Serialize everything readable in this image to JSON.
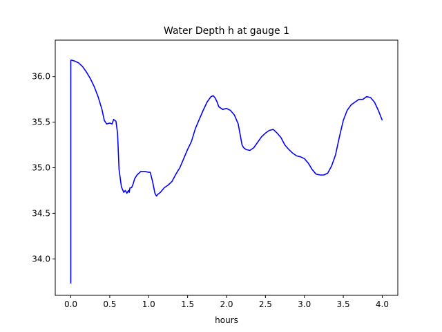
{
  "chart_data": {
    "type": "line",
    "title": "Water Depth h at gauge 1",
    "xlabel": "hours",
    "ylabel": "",
    "xlim": [
      -0.2,
      4.2
    ],
    "ylim": [
      33.6,
      36.4
    ],
    "xticks": [
      0.0,
      0.5,
      1.0,
      1.5,
      2.0,
      2.5,
      3.0,
      3.5,
      4.0
    ],
    "xtick_labels": [
      "0.0",
      "0.5",
      "1.0",
      "1.5",
      "2.0",
      "2.5",
      "3.0",
      "3.5",
      "4.0"
    ],
    "yticks": [
      34.0,
      34.5,
      35.0,
      35.5,
      36.0
    ],
    "ytick_labels": [
      "34.0",
      "34.5",
      "35.0",
      "35.5",
      "36.0"
    ],
    "grid": false,
    "series": [
      {
        "color": "#0000ff",
        "x": [
          0.0,
          0.0,
          0.01,
          0.05,
          0.1,
          0.15,
          0.2,
          0.25,
          0.3,
          0.35,
          0.4,
          0.43,
          0.46,
          0.5,
          0.53,
          0.55,
          0.58,
          0.6,
          0.62,
          0.65,
          0.68,
          0.7,
          0.72,
          0.74,
          0.75,
          0.76,
          0.78,
          0.8,
          0.82,
          0.85,
          0.9,
          0.95,
          1.0,
          1.02,
          1.05,
          1.08,
          1.1,
          1.12,
          1.15,
          1.2,
          1.25,
          1.3,
          1.35,
          1.4,
          1.45,
          1.5,
          1.55,
          1.6,
          1.65,
          1.7,
          1.75,
          1.8,
          1.83,
          1.85,
          1.88,
          1.9,
          1.95,
          2.0,
          2.05,
          2.1,
          2.15,
          2.2,
          2.22,
          2.25,
          2.3,
          2.35,
          2.4,
          2.45,
          2.5,
          2.55,
          2.6,
          2.65,
          2.7,
          2.75,
          2.8,
          2.85,
          2.9,
          2.95,
          3.0,
          3.05,
          3.1,
          3.15,
          3.2,
          3.25,
          3.3,
          3.35,
          3.4,
          3.45,
          3.5,
          3.55,
          3.6,
          3.65,
          3.7,
          3.75,
          3.8,
          3.85,
          3.9,
          3.95,
          4.0
        ],
        "y": [
          33.73,
          36.18,
          36.18,
          36.17,
          36.15,
          36.11,
          36.05,
          35.98,
          35.89,
          35.78,
          35.64,
          35.52,
          35.48,
          35.49,
          35.48,
          35.53,
          35.51,
          35.38,
          34.98,
          34.79,
          34.73,
          34.75,
          34.72,
          34.75,
          34.73,
          34.78,
          34.78,
          34.82,
          34.88,
          34.92,
          34.96,
          34.96,
          34.95,
          34.95,
          34.85,
          34.72,
          34.69,
          34.71,
          34.73,
          34.78,
          34.81,
          34.85,
          34.93,
          35.0,
          35.1,
          35.2,
          35.29,
          35.43,
          35.53,
          35.63,
          35.72,
          35.78,
          35.79,
          35.77,
          35.72,
          35.67,
          35.64,
          35.65,
          35.63,
          35.58,
          35.48,
          35.25,
          35.22,
          35.2,
          35.19,
          35.22,
          35.28,
          35.34,
          35.38,
          35.41,
          35.42,
          35.38,
          35.33,
          35.25,
          35.2,
          35.16,
          35.13,
          35.12,
          35.1,
          35.05,
          34.98,
          34.93,
          34.92,
          34.92,
          34.94,
          35.02,
          35.14,
          35.34,
          35.52,
          35.63,
          35.69,
          35.72,
          35.75,
          35.75,
          35.78,
          35.77,
          35.72,
          35.63,
          35.52
        ]
      }
    ]
  }
}
